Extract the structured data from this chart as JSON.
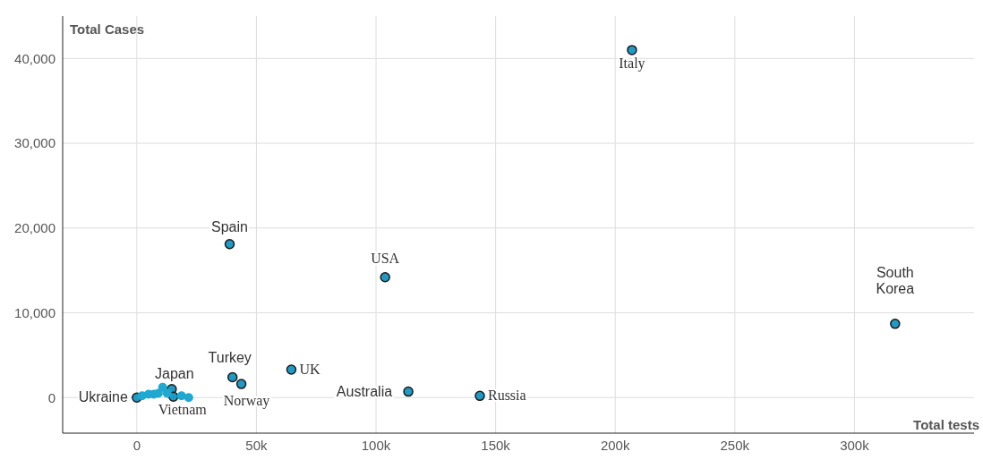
{
  "chart_data": {
    "type": "scatter",
    "xlabel": "Total tests",
    "ylabel": "Total Cases",
    "series": [
      {
        "color": "#1f9ac4",
        "x": [
          207000,
          38800,
          103800,
          317000,
          64600,
          40000,
          43700,
          113500,
          143400,
          14600,
          15300,
          0
        ],
        "values": [
          41000,
          18100,
          14200,
          8700,
          3300,
          2400,
          1600,
          700,
          200,
          1000,
          100,
          0
        ]
      },
      {
        "color": "#1fa8d0",
        "x": [
          2200,
          4900,
          7100,
          9000,
          10800,
          12700,
          18700,
          21700
        ],
        "values": [
          200,
          400,
          400,
          500,
          1200,
          500,
          200,
          0
        ]
      }
    ],
    "annotations": [
      {
        "text": "Italy",
        "x": 207000,
        "y": 41000
      },
      {
        "text": "Spain",
        "x": 38800,
        "y": 18100
      },
      {
        "text": "USA",
        "x": 103800,
        "y": 14200
      },
      {
        "text": "South\nKorea",
        "x": 317000,
        "y": 8700
      },
      {
        "text": "UK",
        "x": 64600,
        "y": 3300
      },
      {
        "text": "Turkey",
        "x": 40000,
        "y": 2400
      },
      {
        "text": "Norway",
        "x": 43700,
        "y": 1600
      },
      {
        "text": "Australia",
        "x": 113500,
        "y": 700
      },
      {
        "text": "Russia",
        "x": 143400,
        "y": 200
      },
      {
        "text": "Japan",
        "x": 14600,
        "y": 1000
      },
      {
        "text": "Vietnam",
        "x": 15300,
        "y": 100
      },
      {
        "text": "Ukraine",
        "x": 0,
        "y": 0
      }
    ],
    "xlim": [
      -31000,
      350000
    ],
    "xticks": [
      0,
      {
        "value": 50000,
        "label": "50k"
      },
      {
        "value": 100000,
        "label": "100k"
      },
      {
        "value": 150000,
        "label": "150k"
      },
      {
        "value": 200000,
        "label": "200k"
      },
      {
        "value": 250000,
        "label": "250k"
      },
      {
        "value": 300000,
        "label": "300k"
      }
    ],
    "ylim": [
      -4200,
      45000
    ],
    "yticks": [
      0,
      {
        "value": 10000,
        "label": "10,000"
      },
      {
        "value": 20000,
        "label": "20,000"
      },
      {
        "value": 30000,
        "label": "30,000"
      },
      {
        "value": 40000,
        "label": "40,000"
      }
    ],
    "grid": true,
    "marker": "circle"
  }
}
